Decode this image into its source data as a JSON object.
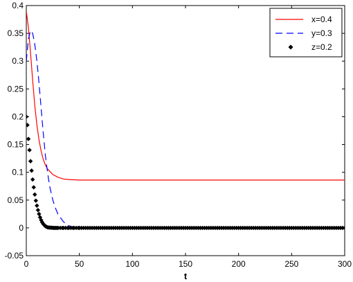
{
  "chart_data": {
    "type": "line",
    "title": "",
    "xlabel": "t",
    "ylabel": "",
    "xlim": [
      0,
      300
    ],
    "ylim": [
      -0.05,
      0.4
    ],
    "xticks": [
      0,
      50,
      100,
      150,
      200,
      250,
      300
    ],
    "xtick_labels": [
      "0",
      "50",
      "100",
      "150",
      "200",
      "250",
      "300"
    ],
    "yticks": [
      -0.05,
      0,
      0.05,
      0.1,
      0.15,
      0.2,
      0.25,
      0.3,
      0.35,
      0.4
    ],
    "ytick_labels": [
      "-0.05",
      "0",
      "0.05",
      "0.1",
      "0.15",
      "0.2",
      "0.25",
      "0.3",
      "0.35",
      "0.4"
    ],
    "grid": false,
    "legend_position": "top-right",
    "series": [
      {
        "name": "x=0.4",
        "color": "#ff0000",
        "style": "solid",
        "x": [
          0,
          2,
          4,
          6,
          8,
          10,
          12,
          14,
          16,
          18,
          20,
          25,
          30,
          35,
          40,
          50,
          60,
          80,
          100,
          150,
          200,
          250,
          300
        ],
        "y": [
          0.39,
          0.36,
          0.315,
          0.265,
          0.22,
          0.185,
          0.158,
          0.138,
          0.123,
          0.113,
          0.106,
          0.096,
          0.091,
          0.088,
          0.087,
          0.086,
          0.086,
          0.086,
          0.086,
          0.086,
          0.086,
          0.086,
          0.086
        ]
      },
      {
        "name": "y=0.3",
        "color": "#0000ff",
        "style": "dashed",
        "x": [
          0,
          2,
          4,
          6,
          8,
          10,
          12,
          14,
          16,
          18,
          20,
          22,
          25,
          28,
          30,
          35,
          40,
          45,
          50,
          100,
          150,
          200,
          250,
          300
        ],
        "y": [
          0.3,
          0.34,
          0.355,
          0.35,
          0.33,
          0.3,
          0.26,
          0.215,
          0.17,
          0.13,
          0.1,
          0.075,
          0.05,
          0.033,
          0.024,
          0.011,
          0.004,
          0.001,
          0.0,
          0.0,
          0.0,
          0.0,
          0.0,
          0.0
        ]
      },
      {
        "name": "z=0.2",
        "color": "#000000",
        "style": "markers",
        "x": [
          0,
          1,
          2,
          3,
          4,
          5,
          6,
          7,
          8,
          9,
          10,
          11,
          12,
          13,
          14,
          15,
          16,
          17,
          18,
          19,
          20,
          22,
          24,
          26,
          28,
          30,
          35,
          40,
          45,
          50,
          60,
          70,
          80,
          90,
          100,
          110,
          120,
          130,
          140,
          150,
          160,
          170,
          180,
          190,
          200,
          210,
          220,
          230,
          240,
          250,
          260,
          270,
          280,
          290,
          300
        ],
        "y": [
          0.2,
          0.185,
          0.16,
          0.14,
          0.12,
          0.103,
          0.087,
          0.073,
          0.06,
          0.049,
          0.04,
          0.032,
          0.025,
          0.019,
          0.014,
          0.01,
          0.007,
          0.005,
          0.003,
          0.002,
          0.001,
          0.0005,
          0.0002,
          0.0,
          0.0,
          0.0,
          0.0,
          0.0,
          0.0,
          0.0,
          0.0,
          0.0,
          0.0,
          0.0,
          0.0,
          0.0,
          0.0,
          0.0,
          0.0,
          0.0,
          0.0,
          0.0,
          0.0,
          0.0,
          0.0,
          0.0,
          0.0,
          0.0,
          0.0,
          0.0,
          0.0,
          0.0,
          0.0,
          0.0,
          0.0
        ]
      }
    ]
  }
}
